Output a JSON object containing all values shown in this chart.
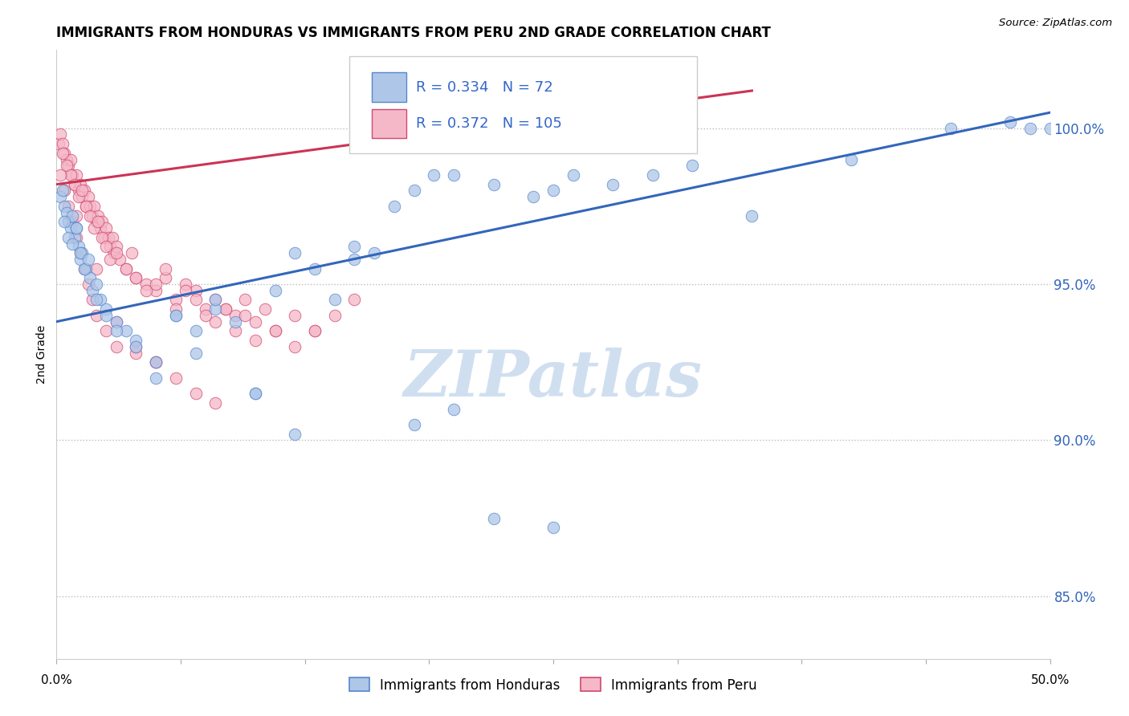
{
  "title": "IMMIGRANTS FROM HONDURAS VS IMMIGRANTS FROM PERU 2ND GRADE CORRELATION CHART",
  "source": "Source: ZipAtlas.com",
  "ylabel": "2nd Grade",
  "xlim": [
    0.0,
    50.0
  ],
  "ylim": [
    83.0,
    102.5
  ],
  "y_ticks": [
    85.0,
    90.0,
    95.0,
    100.0
  ],
  "y_tick_labels": [
    "85.0%",
    "90.0%",
    "95.0%",
    "100.0%"
  ],
  "blue_R": 0.334,
  "blue_N": 72,
  "pink_R": 0.372,
  "pink_N": 105,
  "legend_label_blue": "Immigrants from Honduras",
  "legend_label_pink": "Immigrants from Peru",
  "blue_color": "#aec6e8",
  "pink_color": "#f5b8c8",
  "blue_edge_color": "#5588cc",
  "pink_edge_color": "#d04870",
  "blue_line_color": "#3366bb",
  "pink_line_color": "#cc3355",
  "watermark_color": "#d0dff0",
  "blue_line_x0": 0.0,
  "blue_line_y0": 93.8,
  "blue_line_x1": 50.0,
  "blue_line_y1": 100.5,
  "pink_line_x0": 0.0,
  "pink_line_y0": 98.2,
  "pink_line_x1": 35.0,
  "pink_line_y1": 101.2,
  "blue_x": [
    0.2,
    0.3,
    0.4,
    0.5,
    0.6,
    0.7,
    0.8,
    0.9,
    1.0,
    1.1,
    1.2,
    1.3,
    1.5,
    1.7,
    1.8,
    2.0,
    2.2,
    2.5,
    3.0,
    3.5,
    4.0,
    5.0,
    6.0,
    7.0,
    8.0,
    9.0,
    10.0,
    11.0,
    12.0,
    13.0,
    14.0,
    15.0,
    16.0,
    17.0,
    18.0,
    19.0,
    20.0,
    22.0,
    24.0,
    25.0,
    26.0,
    28.0,
    30.0,
    32.0,
    35.0,
    40.0,
    45.0,
    48.0,
    49.0,
    50.0,
    0.4,
    0.6,
    0.8,
    1.0,
    1.2,
    1.4,
    1.6,
    2.0,
    2.5,
    3.0,
    4.0,
    5.0,
    6.0,
    7.0,
    8.0,
    10.0,
    12.0,
    15.0,
    18.0,
    20.0,
    22.0,
    25.0
  ],
  "blue_y": [
    97.8,
    98.0,
    97.5,
    97.3,
    97.0,
    96.8,
    97.2,
    96.5,
    96.8,
    96.2,
    95.8,
    96.0,
    95.5,
    95.2,
    94.8,
    95.0,
    94.5,
    94.2,
    93.8,
    93.5,
    93.2,
    92.5,
    94.0,
    93.5,
    94.2,
    93.8,
    91.5,
    94.8,
    96.0,
    95.5,
    94.5,
    96.2,
    96.0,
    97.5,
    98.0,
    98.5,
    98.5,
    98.2,
    97.8,
    98.0,
    98.5,
    98.2,
    98.5,
    98.8,
    97.2,
    99.0,
    100.0,
    100.2,
    100.0,
    100.0,
    97.0,
    96.5,
    96.3,
    96.8,
    96.0,
    95.5,
    95.8,
    94.5,
    94.0,
    93.5,
    93.0,
    92.0,
    94.0,
    92.8,
    94.5,
    91.5,
    90.2,
    95.8,
    90.5,
    91.0,
    87.5,
    87.2
  ],
  "pink_x": [
    0.1,
    0.2,
    0.3,
    0.4,
    0.5,
    0.6,
    0.7,
    0.8,
    0.9,
    1.0,
    1.1,
    1.2,
    1.3,
    1.4,
    1.5,
    1.6,
    1.7,
    1.8,
    1.9,
    2.0,
    2.1,
    2.2,
    2.3,
    2.4,
    2.5,
    2.6,
    2.7,
    2.8,
    2.9,
    3.0,
    3.2,
    3.5,
    3.8,
    4.0,
    4.5,
    5.0,
    5.5,
    6.0,
    6.5,
    7.0,
    7.5,
    8.0,
    8.5,
    9.0,
    9.5,
    10.0,
    10.5,
    11.0,
    12.0,
    13.0,
    0.3,
    0.5,
    0.7,
    0.9,
    1.1,
    1.3,
    1.5,
    1.7,
    1.9,
    2.1,
    2.3,
    2.5,
    2.7,
    3.0,
    3.5,
    4.0,
    4.5,
    5.0,
    5.5,
    6.0,
    6.5,
    7.0,
    7.5,
    8.0,
    8.5,
    9.0,
    9.5,
    10.0,
    11.0,
    12.0,
    13.0,
    14.0,
    15.0,
    0.2,
    0.4,
    0.6,
    0.8,
    1.0,
    1.2,
    1.4,
    1.6,
    1.8,
    2.0,
    2.5,
    3.0,
    4.0,
    5.0,
    6.0,
    7.0,
    8.0,
    1.0,
    2.0,
    3.0,
    4.0,
    5.0
  ],
  "pink_y": [
    99.5,
    99.8,
    99.5,
    99.2,
    99.0,
    98.8,
    99.0,
    98.5,
    98.2,
    98.5,
    98.0,
    98.2,
    97.8,
    98.0,
    97.5,
    97.8,
    97.5,
    97.2,
    97.5,
    97.0,
    97.2,
    96.8,
    97.0,
    96.5,
    96.8,
    96.5,
    96.2,
    96.5,
    96.0,
    96.2,
    95.8,
    95.5,
    96.0,
    95.2,
    95.0,
    94.8,
    95.2,
    94.5,
    95.0,
    94.8,
    94.2,
    94.5,
    94.2,
    94.0,
    94.5,
    93.8,
    94.2,
    93.5,
    94.0,
    93.5,
    99.2,
    98.8,
    98.5,
    98.2,
    97.8,
    98.0,
    97.5,
    97.2,
    96.8,
    97.0,
    96.5,
    96.2,
    95.8,
    96.0,
    95.5,
    95.2,
    94.8,
    95.0,
    95.5,
    94.2,
    94.8,
    94.5,
    94.0,
    93.8,
    94.2,
    93.5,
    94.0,
    93.2,
    93.5,
    93.0,
    93.5,
    94.0,
    94.5,
    98.5,
    98.0,
    97.5,
    97.0,
    96.5,
    96.0,
    95.5,
    95.0,
    94.5,
    94.0,
    93.5,
    93.0,
    92.8,
    92.5,
    92.0,
    91.5,
    91.2,
    97.2,
    95.5,
    93.8,
    93.0,
    92.5
  ]
}
